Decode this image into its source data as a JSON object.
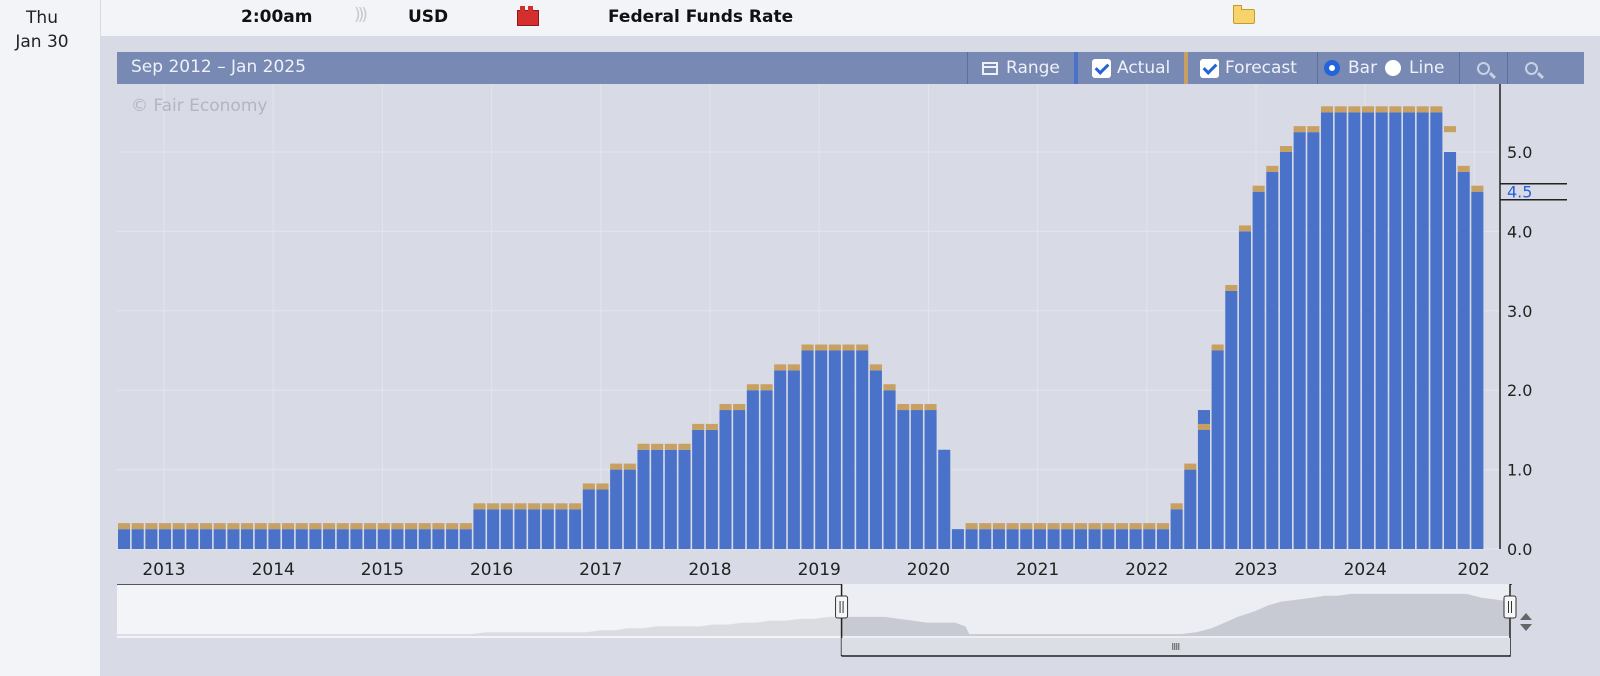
{
  "day_column": {
    "day_of_week": "Thu",
    "date": "Jan 30"
  },
  "event": {
    "time": "2:00am",
    "currency": "USD",
    "title": "Federal Funds Rate",
    "sound_icon": "sound-wave-icon",
    "impact_icon": "high-impact-icon",
    "impact_color": "#d32f2f",
    "detail_icon": "folder-icon"
  },
  "toolbar": {
    "range_text": "Sep 2012 – Jan 2025",
    "range_label": "Range",
    "actual_label": "Actual",
    "actual_checked": true,
    "forecast_label": "Forecast",
    "forecast_checked": true,
    "bar_label": "Bar",
    "line_label": "Line",
    "selected_mode": "Bar",
    "zoom_in_icon": "zoom-in-icon",
    "zoom_out_icon": "zoom-out-icon"
  },
  "chart_data": {
    "type": "bar",
    "watermark": "© Fair Economy",
    "x_tick_labels": [
      "2013",
      "2014",
      "2015",
      "2016",
      "2017",
      "2018",
      "2019",
      "2020",
      "2021",
      "2022",
      "2023",
      "2024",
      "202"
    ],
    "y_tick_labels": [
      "0.0",
      "1.0",
      "2.0",
      "3.0",
      "4.0",
      "5.0"
    ],
    "ylim": [
      0,
      5.75
    ],
    "current_value_label": "4.5",
    "grid": true,
    "colors": {
      "actual": "#4a72c8",
      "forecast": "#c8a062",
      "current_marker": "#2563d8"
    },
    "series": [
      {
        "name": "Actual",
        "dates": [
          "2012-09-13",
          "2012-10-24",
          "2012-12-12",
          "2013-01-30",
          "2013-03-20",
          "2013-05-01",
          "2013-06-19",
          "2013-07-31",
          "2013-09-18",
          "2013-10-30",
          "2013-12-18",
          "2014-01-29",
          "2014-03-19",
          "2014-04-30",
          "2014-06-18",
          "2014-07-30",
          "2014-09-17",
          "2014-10-29",
          "2014-12-17",
          "2015-01-28",
          "2015-03-18",
          "2015-04-29",
          "2015-06-17",
          "2015-07-29",
          "2015-09-17",
          "2015-10-28",
          "2015-12-16",
          "2016-01-27",
          "2016-03-16",
          "2016-04-27",
          "2016-06-15",
          "2016-07-27",
          "2016-09-21",
          "2016-11-02",
          "2016-12-14",
          "2017-02-01",
          "2017-03-15",
          "2017-05-03",
          "2017-06-14",
          "2017-07-26",
          "2017-09-20",
          "2017-11-01",
          "2017-12-13",
          "2018-01-31",
          "2018-03-21",
          "2018-05-02",
          "2018-06-13",
          "2018-08-01",
          "2018-09-26",
          "2018-11-08",
          "2018-12-19",
          "2019-01-30",
          "2019-03-20",
          "2019-05-01",
          "2019-06-19",
          "2019-07-31",
          "2019-09-18",
          "2019-10-30",
          "2019-12-11",
          "2020-01-29",
          "2020-03-03",
          "2020-03-15",
          "2020-04-29",
          "2020-06-10",
          "2020-07-29",
          "2020-09-16",
          "2020-11-05",
          "2020-12-16",
          "2021-01-27",
          "2021-03-17",
          "2021-04-28",
          "2021-06-16",
          "2021-07-28",
          "2021-09-22",
          "2021-11-03",
          "2021-12-15",
          "2022-01-26",
          "2022-03-16",
          "2022-05-04",
          "2022-06-15",
          "2022-07-27",
          "2022-09-21",
          "2022-11-02",
          "2022-12-14",
          "2023-02-01",
          "2023-03-22",
          "2023-05-03",
          "2023-06-14",
          "2023-07-26",
          "2023-09-20",
          "2023-11-01",
          "2023-12-13",
          "2024-01-31",
          "2024-03-20",
          "2024-05-01",
          "2024-06-12",
          "2024-07-31",
          "2024-09-18",
          "2024-11-07",
          "2024-12-18"
        ],
        "values": [
          0.25,
          0.25,
          0.25,
          0.25,
          0.25,
          0.25,
          0.25,
          0.25,
          0.25,
          0.25,
          0.25,
          0.25,
          0.25,
          0.25,
          0.25,
          0.25,
          0.25,
          0.25,
          0.25,
          0.25,
          0.25,
          0.25,
          0.25,
          0.25,
          0.25,
          0.25,
          0.5,
          0.5,
          0.5,
          0.5,
          0.5,
          0.5,
          0.5,
          0.5,
          0.75,
          0.75,
          1.0,
          1.0,
          1.25,
          1.25,
          1.25,
          1.25,
          1.5,
          1.5,
          1.75,
          1.75,
          2.0,
          2.0,
          2.25,
          2.25,
          2.5,
          2.5,
          2.5,
          2.5,
          2.5,
          2.25,
          2.0,
          1.75,
          1.75,
          1.75,
          1.25,
          0.25,
          0.25,
          0.25,
          0.25,
          0.25,
          0.25,
          0.25,
          0.25,
          0.25,
          0.25,
          0.25,
          0.25,
          0.25,
          0.25,
          0.25,
          0.25,
          0.5,
          1.0,
          1.75,
          2.5,
          3.25,
          4.0,
          4.5,
          4.75,
          5.0,
          5.25,
          5.25,
          5.5,
          5.5,
          5.5,
          5.5,
          5.5,
          5.5,
          5.5,
          5.5,
          5.5,
          5.0,
          4.75,
          4.5
        ]
      },
      {
        "name": "Forecast",
        "dates": [
          "2012-09-13",
          "2012-10-24",
          "2012-12-12",
          "2013-01-30",
          "2013-03-20",
          "2013-05-01",
          "2013-06-19",
          "2013-07-31",
          "2013-09-18",
          "2013-10-30",
          "2013-12-18",
          "2014-01-29",
          "2014-03-19",
          "2014-04-30",
          "2014-06-18",
          "2014-07-30",
          "2014-09-17",
          "2014-10-29",
          "2014-12-17",
          "2015-01-28",
          "2015-03-18",
          "2015-04-29",
          "2015-06-17",
          "2015-07-29",
          "2015-09-17",
          "2015-10-28",
          "2015-12-16",
          "2016-01-27",
          "2016-03-16",
          "2016-04-27",
          "2016-06-15",
          "2016-07-27",
          "2016-09-21",
          "2016-11-02",
          "2016-12-14",
          "2017-02-01",
          "2017-03-15",
          "2017-05-03",
          "2017-06-14",
          "2017-07-26",
          "2017-09-20",
          "2017-11-01",
          "2017-12-13",
          "2018-01-31",
          "2018-03-21",
          "2018-05-02",
          "2018-06-13",
          "2018-08-01",
          "2018-09-26",
          "2018-11-08",
          "2018-12-19",
          "2019-01-30",
          "2019-03-20",
          "2019-05-01",
          "2019-06-19",
          "2019-07-31",
          "2019-09-18",
          "2019-10-30",
          "2019-12-11",
          "2020-01-29",
          "2020-03-03",
          "2020-03-15",
          "2020-04-29",
          "2020-06-10",
          "2020-07-29",
          "2020-09-16",
          "2020-11-05",
          "2020-12-16",
          "2021-01-27",
          "2021-03-17",
          "2021-04-28",
          "2021-06-16",
          "2021-07-28",
          "2021-09-22",
          "2021-11-03",
          "2021-12-15",
          "2022-01-26",
          "2022-03-16",
          "2022-05-04",
          "2022-06-15",
          "2022-07-27",
          "2022-09-21",
          "2022-11-02",
          "2022-12-14",
          "2023-02-01",
          "2023-03-22",
          "2023-05-03",
          "2023-06-14",
          "2023-07-26",
          "2023-09-20",
          "2023-11-01",
          "2023-12-13",
          "2024-01-31",
          "2024-03-20",
          "2024-05-01",
          "2024-06-12",
          "2024-07-31",
          "2024-09-18",
          "2024-11-07",
          "2024-12-18"
        ],
        "values": [
          0.25,
          0.25,
          0.25,
          0.25,
          0.25,
          0.25,
          0.25,
          0.25,
          0.25,
          0.25,
          0.25,
          0.25,
          0.25,
          0.25,
          0.25,
          0.25,
          0.25,
          0.25,
          0.25,
          0.25,
          0.25,
          0.25,
          0.25,
          0.25,
          0.25,
          0.25,
          0.5,
          0.5,
          0.5,
          0.5,
          0.5,
          0.5,
          0.5,
          0.5,
          0.75,
          0.75,
          1.0,
          1.0,
          1.25,
          1.25,
          1.25,
          1.25,
          1.5,
          1.5,
          1.75,
          1.75,
          2.0,
          2.0,
          2.25,
          2.25,
          2.5,
          2.5,
          2.5,
          2.5,
          2.5,
          2.25,
          2.0,
          1.75,
          1.75,
          1.75,
          null,
          null,
          0.25,
          0.25,
          0.25,
          0.25,
          0.25,
          0.25,
          0.25,
          0.25,
          0.25,
          0.25,
          0.25,
          0.25,
          0.25,
          0.25,
          0.25,
          0.5,
          1.0,
          1.5,
          2.5,
          3.25,
          4.0,
          4.5,
          4.75,
          5.0,
          5.25,
          5.25,
          5.5,
          5.5,
          5.5,
          5.5,
          5.5,
          5.5,
          5.5,
          5.5,
          5.5,
          5.25,
          4.75,
          4.5
        ]
      }
    ],
    "navigator": {
      "series_name": "Actual",
      "selection_start": "2019-01-30",
      "selection_end": "2024-12-18"
    }
  }
}
